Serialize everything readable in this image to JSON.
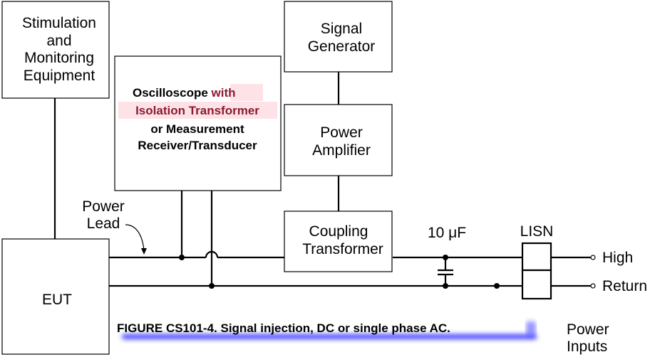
{
  "diagram": {
    "stim_box": {
      "lines": [
        "Stimulation",
        "and",
        "Monitoring",
        "Equipment"
      ]
    },
    "scope_box": {
      "line1_plain": "Oscilloscope ",
      "line1_highlight": "with",
      "line2_highlight": "Isolation Transformer",
      "line3": "or Measurement",
      "line4": "Receiver/Transducer"
    },
    "signal_generator": {
      "lines": [
        "Signal",
        "Generator"
      ]
    },
    "power_amplifier": {
      "lines": [
        "Power",
        "Amplifier"
      ]
    },
    "coupling_transformer": {
      "lines": [
        "Coupling",
        "Transformer"
      ]
    },
    "eut": {
      "label": "EUT"
    },
    "power_lead": {
      "lines": [
        "Power",
        "Lead"
      ]
    },
    "capacitor": {
      "label": "10 μF"
    },
    "lisn": {
      "label": "LISN"
    },
    "terminals": {
      "high": "High",
      "return": "Return"
    },
    "power_inputs": {
      "lines": [
        "Power",
        "Inputs"
      ]
    },
    "caption": "FIGURE CS101-4.  Signal injection, DC or single phase AC.",
    "colors": {
      "highlight_bg": "#fde3e7",
      "highlight_text": "#8b1a30",
      "caption_glow": "#3f3fff"
    }
  }
}
